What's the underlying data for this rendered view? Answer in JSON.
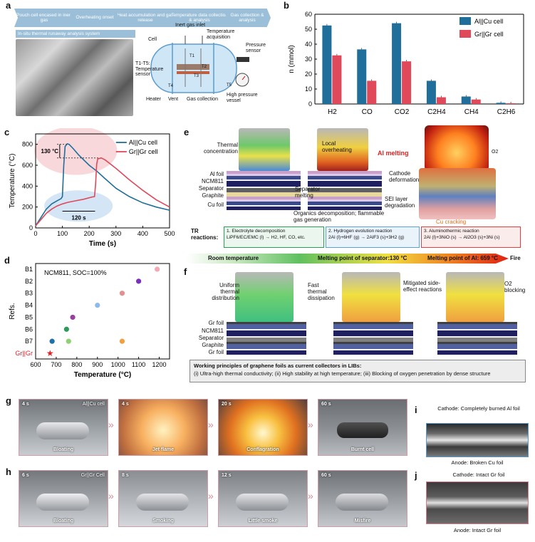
{
  "panel_letters": {
    "a": "a",
    "b": "b",
    "c": "c",
    "d": "d",
    "e": "e",
    "f": "f",
    "g": "g",
    "h": "h",
    "i": "i",
    "j": "j"
  },
  "panel_a": {
    "flow_steps": [
      "Pouch cell encased in inert gas",
      "Overheating onset",
      "Heat accumulation and gas release",
      "Temperature data collection & analysis",
      "Gas collection & analysis"
    ],
    "system_label": "In-situ thermal runaway analysis system",
    "labels": {
      "inert_gas_inlet": "Inert gas inlet",
      "temperature_acquisition": "Temperature acquisition",
      "cell": "Cell",
      "pressure_sensor": "Pressure sensor",
      "temp_sensor": "T1-T5: Temperature sensor",
      "heater": "Heater",
      "vent": "Vent",
      "gas_collection": "Gas collection",
      "hp_vessel": "High pressure vessel",
      "t1": "T1",
      "t2": "T2",
      "t3": "T3",
      "t4": "T4",
      "t5": "T5"
    }
  },
  "colors": {
    "alcu": "#1f6f9a",
    "grgr": "#e0495a"
  },
  "chart_b": {
    "type": "bar",
    "ylabel": "n (mmol)",
    "ylim": [
      0,
      60
    ],
    "yticks": [
      0,
      10,
      20,
      30,
      40,
      50,
      60
    ],
    "categories": [
      "H2",
      "CO",
      "CO2",
      "C2H4",
      "CH4",
      "C2H6"
    ],
    "series": [
      {
        "name": "Al||Cu cell",
        "values": [
          52.5,
          36.5,
          54,
          15.5,
          5,
          0.8
        ]
      },
      {
        "name": "Gr||Gr cell",
        "values": [
          32.5,
          15.5,
          28.5,
          4.5,
          3,
          0.5
        ]
      }
    ],
    "legend_position": "top-right"
  },
  "chart_c": {
    "type": "line",
    "xlabel": "Time (s)",
    "ylabel": "Temperature (°C)",
    "xlim": [
      0,
      500
    ],
    "ylim": [
      0,
      900
    ],
    "xticks": [
      0,
      100,
      200,
      300,
      400,
      500
    ],
    "yticks": [
      0,
      200,
      400,
      600,
      800
    ],
    "series": [
      {
        "name": "Al||Cu cell",
        "x": [
          0,
          20,
          40,
          60,
          80,
          95,
          100,
          105,
          110,
          118,
          125,
          140,
          160,
          180,
          200,
          230,
          260,
          300,
          350,
          400,
          450,
          500
        ],
        "y": [
          20,
          100,
          180,
          230,
          260,
          280,
          300,
          600,
          780,
          805,
          800,
          760,
          700,
          650,
          600,
          540,
          470,
          380,
          300,
          240,
          200,
          170
        ]
      },
      {
        "name": "Gr||Gr cell",
        "x": [
          0,
          20,
          40,
          60,
          80,
          100,
          120,
          150,
          180,
          210,
          220,
          224,
          228,
          232,
          245,
          260,
          300,
          350,
          400,
          450,
          500
        ],
        "y": [
          20,
          80,
          140,
          180,
          210,
          230,
          245,
          260,
          275,
          295,
          300,
          420,
          610,
          660,
          670,
          650,
          570,
          460,
          360,
          270,
          200
        ]
      }
    ],
    "annotations": {
      "delta_t": "130 °C",
      "delta_time": "120 s"
    },
    "legend_position": "top-right"
  },
  "chart_d": {
    "type": "scatter",
    "title": "NCM811, SOC=100%",
    "xlabel": "Temperature (°C)",
    "ylabel": "Refs.",
    "xlim": [
      600,
      1250
    ],
    "xticks": [
      600,
      700,
      800,
      900,
      1000,
      1100,
      1200
    ],
    "categories": [
      "B1",
      "B2",
      "B3",
      "B4",
      "B5",
      "B6",
      "B7",
      "Gr||Gr"
    ],
    "x": [
      1190,
      1100,
      1020,
      900,
      780,
      750,
      760,
      680,
      1020,
      670
    ],
    "y_index": [
      0,
      1,
      2,
      3,
      4,
      5,
      6,
      6,
      6,
      7
    ],
    "point_colors": [
      "#f4a8b4",
      "#7b2fbf",
      "#e49090",
      "#8fb9e8",
      "#9a3fa0",
      "#2e9a5a",
      "#8fd070",
      "#1f6fa8",
      "#f0a040",
      "#e0202a"
    ]
  },
  "panel_e": {
    "labels": {
      "thermal_conc": "Thermal concentration",
      "local_overheat": "Local overheating",
      "al_melting": "Al melting",
      "o2": "O2",
      "al_foil": "Al foil",
      "ncm811": "NCM811",
      "separator": "Separator",
      "graphite": "Graphite",
      "cu_foil": "Cu foil",
      "sep_melting": "Separator melting",
      "cathode_deform": "Cathode deformation",
      "sei_degrade": "SEI layer degradation",
      "organics": "Organics decomposition; flammable gas generation",
      "cu_cracking": "Cu cracking",
      "tr_reactions": "TR reactions:"
    },
    "reactions": [
      {
        "title": "1. Electrolyte decomposition",
        "eq": "LiPF6/EC/EMC (l) → H2, HF, CO, etc."
      },
      {
        "title": "2. Hydrogen evolution reaction",
        "eq": "2Al (l)+6HF (g) → 2AlF3 (s)+3H2 (g)"
      },
      {
        "title": "3. Aluminothermic reaction",
        "eq": "2Al (l)+3NiO (s) → Al2O3 (s)+3Ni (s)"
      }
    ],
    "scale": {
      "room": "Room temperature",
      "sep": "Melting point of separator:130 °C",
      "al": "Melting point of Al: 659 °C",
      "fire": "Fire"
    }
  },
  "panel_f": {
    "labels": {
      "uniform": "Uniform thermal distribution",
      "fast": "Fast thermal dissipation",
      "mitigated": "Mitigated side-effect reactions",
      "o2_blocking": "O2 blocking",
      "gr_foil_top": "Gr foil",
      "ncm811": "NCM811",
      "separator": "Separator",
      "graphite": "Graphite",
      "gr_foil_bottom": "Gr foil"
    },
    "principles_title": "Working principles of graphene foils as current collectors in LIBs:",
    "principles_text": "(i) Ultra-high thermal conductivity; (ii) High stability at high temperature; (iii) Blocking of oxygen penetration by dense structure"
  },
  "panel_g": {
    "label": "Al||Cu cell",
    "frames": [
      {
        "time": "4 s",
        "caption": "Bloating"
      },
      {
        "time": "4 s",
        "caption": "Jet flame"
      },
      {
        "time": "20 s",
        "caption": "Conflagration"
      },
      {
        "time": "60 s",
        "caption": "Burnt cell"
      }
    ]
  },
  "panel_h": {
    "label": "Gr||Gr Cell",
    "frames": [
      {
        "time": "6 s",
        "caption": "Bloating"
      },
      {
        "time": "8 s",
        "caption": "Smoking"
      },
      {
        "time": "12 s",
        "caption": "Little smoke"
      },
      {
        "time": "60 s",
        "caption": "Misfire"
      }
    ]
  },
  "panel_i": {
    "cathode": "Cathode: Completely burned Al foil",
    "anode": "Anode: Broken Cu foil"
  },
  "panel_j": {
    "cathode": "Cathode: Intact Gr foil",
    "anode": "Anode: Intact Gr foil"
  }
}
